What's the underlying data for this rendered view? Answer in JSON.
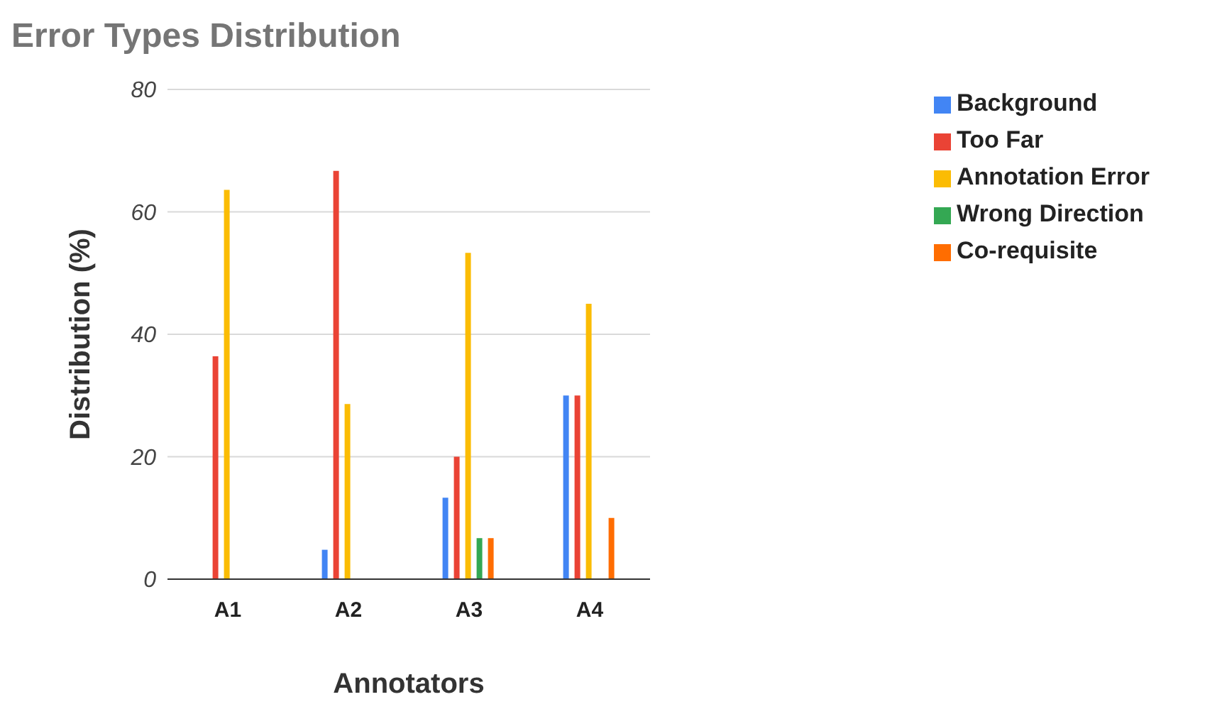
{
  "chart_data": {
    "type": "bar",
    "title": "Error Types Distribution",
    "xlabel": "Annotators",
    "ylabel": "Distribution (%)",
    "categories": [
      "A1",
      "A2",
      "A3",
      "A4"
    ],
    "series": [
      {
        "name": "Background",
        "color": "#4285f4",
        "values": [
          0,
          4.8,
          13.3,
          30
        ]
      },
      {
        "name": "Too Far",
        "color": "#ea4335",
        "values": [
          36.4,
          66.7,
          20,
          30
        ]
      },
      {
        "name": "Annotation Error",
        "color": "#fbbc04",
        "values": [
          63.6,
          28.6,
          53.3,
          45
        ]
      },
      {
        "name": "Wrong Direction",
        "color": "#34a853",
        "values": [
          0,
          0,
          6.7,
          0
        ]
      },
      {
        "name": "Co-requisite",
        "color": "#ff6d01",
        "values": [
          0,
          0,
          6.7,
          10
        ]
      }
    ],
    "ylim": [
      0,
      80
    ],
    "yticks": [
      0,
      20,
      40,
      60,
      80
    ],
    "grid": "y",
    "legend": "right"
  }
}
